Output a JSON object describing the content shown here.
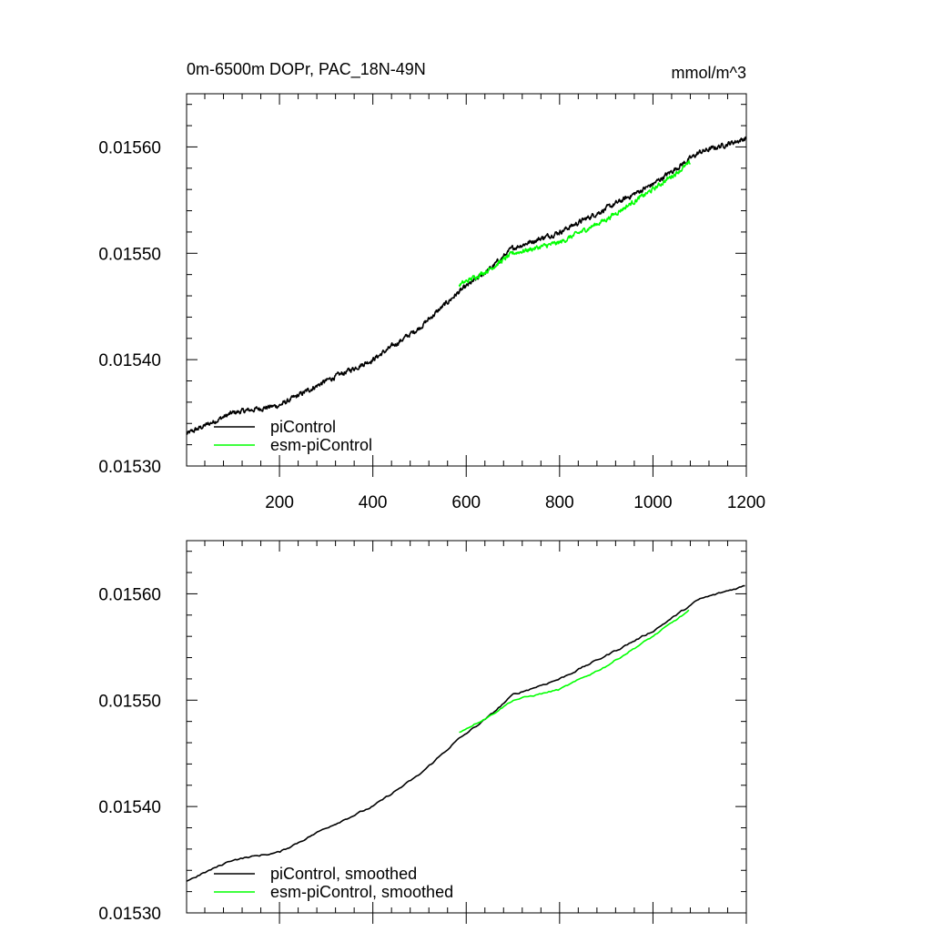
{
  "header": {
    "left_title": "0m-6500m DOPr, PAC_18N-49N",
    "right_title": "mmol/m^3"
  },
  "colors": {
    "piControl": "#000000",
    "esm_piControl": "#00ff00",
    "axis": "#000000"
  },
  "chart_data": [
    {
      "type": "line",
      "title": "0m-6500m DOPr, PAC_18N-49N",
      "units": "mmol/m^3",
      "xlim": [
        1,
        1200
      ],
      "ylim": [
        0.0153,
        0.01565
      ],
      "x_ticks": [
        200,
        400,
        600,
        800,
        1000,
        1200
      ],
      "x_tick_labels": [
        "200",
        "400",
        "600",
        "800",
        "1000",
        "1200"
      ],
      "y_ticks": [
        0.0153,
        0.0154,
        0.0155,
        0.0156
      ],
      "y_tick_labels": [
        "0.01530",
        "0.01540",
        "0.01550",
        "0.01560"
      ],
      "legend": {
        "position": "bottom-left",
        "entries": [
          "piControl",
          "esm-piControl"
        ]
      },
      "series": [
        {
          "name": "piControl",
          "color": "#000000",
          "x_start": 1,
          "x_end": 1200,
          "step": 1,
          "trend_x": [
            1,
            100,
            200,
            300,
            400,
            500,
            580,
            650,
            700,
            800,
            900,
            1000,
            1100,
            1200
          ],
          "trend_y": [
            0.01533,
            0.01535,
            0.015357,
            0.01538,
            0.0154,
            0.01543,
            0.015462,
            0.015485,
            0.015505,
            0.01552,
            0.015542,
            0.015565,
            0.015595,
            0.015608
          ],
          "noise": 1.8e-06
        },
        {
          "name": "esm-piControl",
          "color": "#00ff00",
          "x_start": 585,
          "x_end": 1080,
          "step": 1,
          "trend_x": [
            585,
            650,
            700,
            800,
            900,
            1000,
            1080
          ],
          "trend_y": [
            0.01547,
            0.015485,
            0.0155,
            0.01551,
            0.015532,
            0.01556,
            0.015585
          ],
          "noise": 1.7e-06
        }
      ]
    },
    {
      "type": "line",
      "xlim": [
        1,
        1200
      ],
      "ylim": [
        0.0153,
        0.01565
      ],
      "x_ticks": [
        200,
        400,
        600,
        800,
        1000,
        1200
      ],
      "y_ticks": [
        0.0153,
        0.0154,
        0.0155,
        0.0156
      ],
      "y_tick_labels": [
        "0.01530",
        "0.01540",
        "0.01550",
        "0.01560"
      ],
      "legend": {
        "position": "bottom-left",
        "entries": [
          "piControl, smoothed",
          "esm-piControl, smoothed"
        ]
      },
      "series": [
        {
          "name": "piControl, smoothed",
          "color": "#000000",
          "x_start": 1,
          "x_end": 1200,
          "step": 4,
          "trend_x": [
            1,
            100,
            200,
            300,
            400,
            500,
            580,
            650,
            700,
            800,
            900,
            1000,
            1100,
            1200
          ],
          "trend_y": [
            0.01533,
            0.01535,
            0.015357,
            0.01538,
            0.0154,
            0.01543,
            0.015462,
            0.015485,
            0.015505,
            0.01552,
            0.015542,
            0.015565,
            0.015595,
            0.015608
          ],
          "noise": 7e-07
        },
        {
          "name": "esm-piControl, smoothed",
          "color": "#00ff00",
          "x_start": 585,
          "x_end": 1080,
          "step": 4,
          "trend_x": [
            585,
            650,
            700,
            800,
            900,
            1000,
            1080
          ],
          "trend_y": [
            0.01547,
            0.015485,
            0.0155,
            0.01551,
            0.015532,
            0.01556,
            0.015585
          ],
          "noise": 6e-07
        }
      ]
    }
  ]
}
